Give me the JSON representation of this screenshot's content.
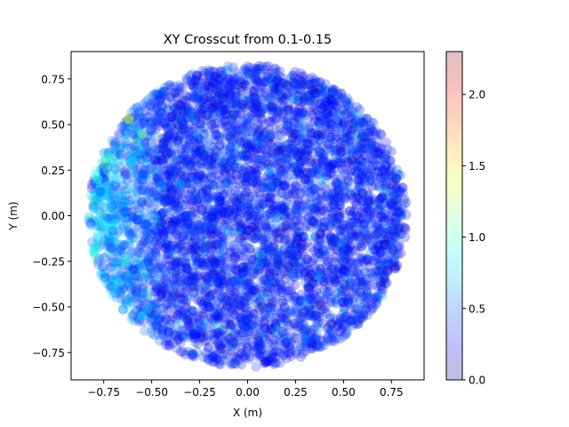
{
  "chart_data": {
    "type": "scatter",
    "title": "XY Crosscut from 0.1-0.15",
    "xlabel": "X (m)",
    "ylabel": "Y (m)",
    "xlim": [
      -0.92,
      0.92
    ],
    "ylim": [
      -0.9,
      0.9
    ],
    "xticks": [
      -0.75,
      -0.5,
      -0.25,
      0.0,
      0.25,
      0.5,
      0.75
    ],
    "xtick_labels": [
      "−0.75",
      "−0.50",
      "−0.25",
      "0.00",
      "0.25",
      "0.50",
      "0.75"
    ],
    "yticks": [
      -0.75,
      -0.5,
      -0.25,
      0.0,
      0.25,
      0.5,
      0.75
    ],
    "ytick_labels": [
      "−0.75",
      "−0.50",
      "−0.25",
      "0.00",
      "0.25",
      "0.50",
      "0.75"
    ],
    "grid": false,
    "colormap": "jet",
    "marker_alpha": 0.25,
    "point_region": {
      "shape": "disk",
      "center": [
        0.0,
        0.0
      ],
      "radius": 0.83
    },
    "points": [
      {
        "x": -0.62,
        "y": 0.53,
        "c": 1.4
      },
      {
        "x": -0.55,
        "y": 0.45,
        "c": 1.1
      },
      {
        "x": -0.72,
        "y": 0.32,
        "c": 1.0
      },
      {
        "x": -0.78,
        "y": 0.2,
        "c": 0.9
      },
      {
        "x": -0.6,
        "y": 0.3,
        "c": 0.8
      },
      {
        "x": -0.75,
        "y": -0.05,
        "c": 0.9
      },
      {
        "x": -0.8,
        "y": -0.2,
        "c": 0.8
      },
      {
        "x": -0.7,
        "y": -0.4,
        "c": 0.7
      },
      {
        "x": -0.55,
        "y": -0.55,
        "c": 0.8
      },
      {
        "x": -0.35,
        "y": 0.17,
        "c": 0.7
      },
      {
        "x": 0.0,
        "y": 0.0,
        "c": 0.25
      },
      {
        "x": 0.3,
        "y": 0.2,
        "c": 0.3
      },
      {
        "x": 0.5,
        "y": -0.3,
        "c": 0.3
      },
      {
        "x": -0.2,
        "y": -0.5,
        "c": 0.35
      },
      {
        "x": 0.4,
        "y": 0.6,
        "c": 0.3
      },
      {
        "x": 0.7,
        "y": 0.1,
        "c": 0.35
      },
      {
        "x": 0.8,
        "y": 0.0,
        "c": 0.4
      },
      {
        "x": -0.1,
        "y": 0.75,
        "c": 0.3
      },
      {
        "x": 0.1,
        "y": -0.8,
        "c": 0.25
      },
      {
        "x": 0.6,
        "y": 0.45,
        "c": 0.45
      }
    ],
    "colorbar": {
      "range": [
        0.0,
        2.3
      ],
      "ticks": [
        0.0,
        0.5,
        1.0,
        1.5,
        2.0
      ],
      "tick_labels": [
        "0.0",
        "0.5",
        "1.0",
        "1.5",
        "2.0"
      ]
    }
  }
}
